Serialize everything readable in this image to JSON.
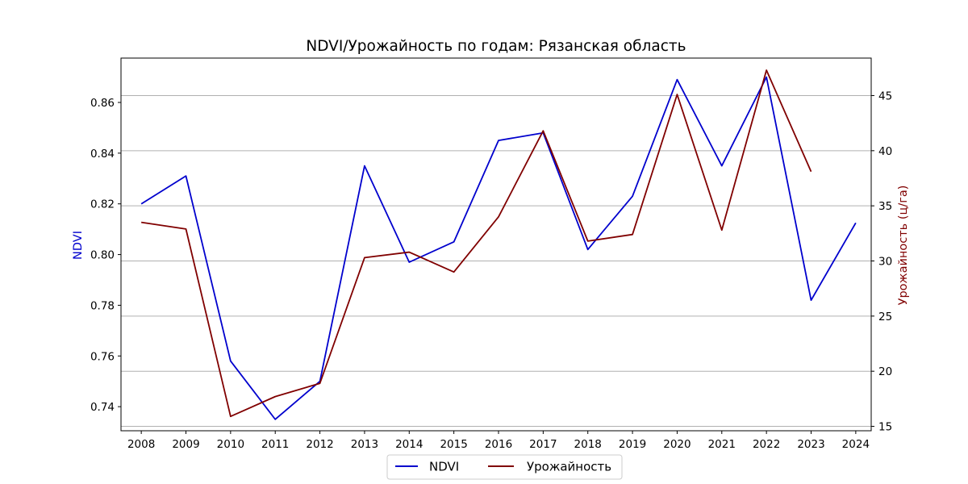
{
  "chart_data": {
    "type": "line",
    "title": "NDVI/Урожайность по годам: Рязанская область",
    "x": [
      "2008",
      "2009",
      "2010",
      "2011",
      "2012",
      "2013",
      "2014",
      "2015",
      "2016",
      "2017",
      "2018",
      "2019",
      "2020",
      "2021",
      "2022",
      "2023",
      "2024"
    ],
    "ylabel_left": "NDVI",
    "ylabel_right": "Урожайность (ц/га)",
    "ylim_left": [
      0.7305,
      0.8775
    ],
    "ylim_right": [
      14.6,
      48.4
    ],
    "yticks_left": [
      0.74,
      0.76,
      0.78,
      0.8,
      0.82,
      0.84,
      0.86
    ],
    "yticks_left_labels": [
      "0.74",
      "0.76",
      "0.78",
      "0.80",
      "0.82",
      "0.84",
      "0.86"
    ],
    "yticks_right": [
      15,
      20,
      25,
      30,
      35,
      40,
      45
    ],
    "yticks_right_labels": [
      "15",
      "20",
      "25",
      "30",
      "35",
      "40",
      "45"
    ],
    "grid": "horizontal lines at right-axis ticks",
    "series": [
      {
        "name": "NDVI",
        "axis": "left",
        "color": "#0000cd",
        "values": [
          0.82,
          0.831,
          0.758,
          0.735,
          0.75,
          0.835,
          0.797,
          0.805,
          0.845,
          0.848,
          0.802,
          0.823,
          0.869,
          0.835,
          0.87,
          0.782,
          0.8125
        ]
      },
      {
        "name": "Урожайность",
        "axis": "right",
        "color": "#800000",
        "values": [
          33.5,
          32.9,
          15.9,
          17.7,
          18.9,
          30.3,
          30.8,
          29.0,
          34.0,
          41.8,
          31.8,
          32.4,
          45.1,
          32.8,
          47.3,
          38.1,
          null
        ]
      }
    ],
    "legend": {
      "placement": "bottom-center",
      "entries": [
        "NDVI",
        "Урожайность"
      ]
    }
  }
}
